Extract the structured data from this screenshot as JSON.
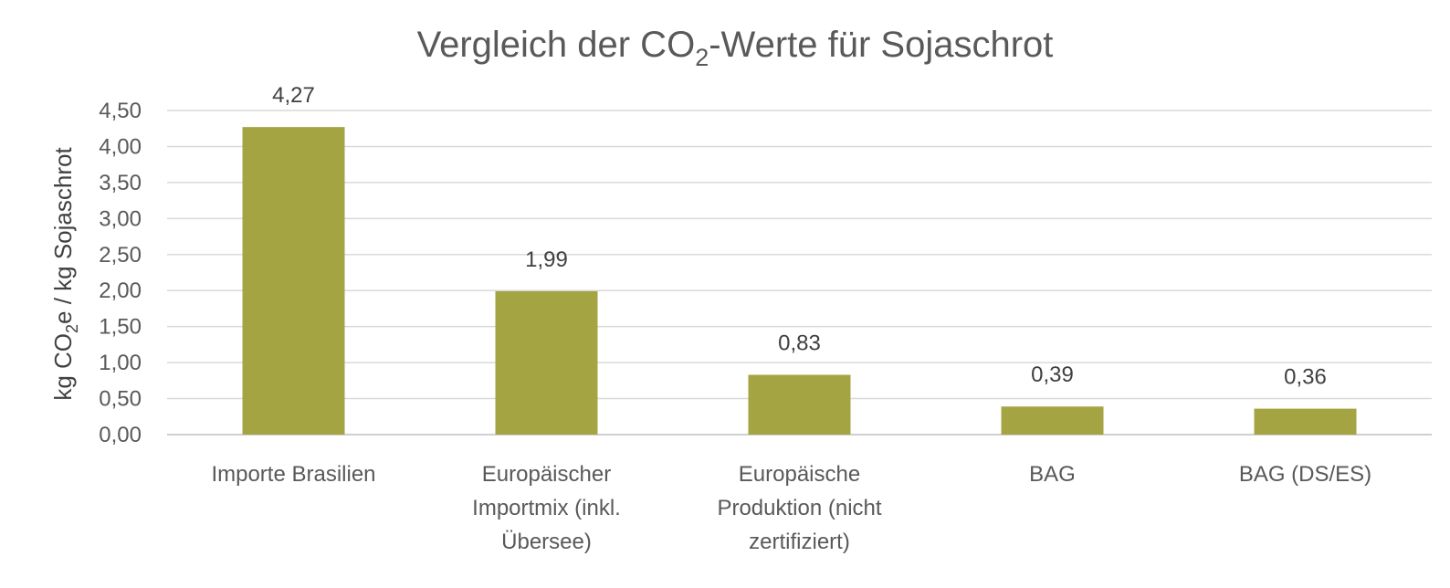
{
  "chart_data": {
    "type": "bar",
    "title": {
      "prefix": "Vergleich der CO",
      "subscript": "2",
      "suffix": "-Werte für Sojaschrot"
    },
    "ylabel": {
      "prefix": "kg CO",
      "subscript": "2",
      "suffix": "e / kg Sojaschrot"
    },
    "xlabel": "",
    "categories": [
      [
        "Importe Brasilien"
      ],
      [
        "Europäischer",
        "Importmix (inkl.",
        "Übersee)"
      ],
      [
        "Europäische",
        "Produktion (nicht",
        "zertifiziert)"
      ],
      [
        "BAG"
      ],
      [
        "BAG (DS/ES)"
      ]
    ],
    "values": [
      4.27,
      1.99,
      0.83,
      0.39,
      0.36
    ],
    "data_labels": [
      "4,27",
      "1,99",
      "0,83",
      "0,39",
      "0,36"
    ],
    "ylim": [
      0,
      4.5
    ],
    "yticks": [
      0,
      0.5,
      1,
      1.5,
      2,
      2.5,
      3,
      3.5,
      4,
      4.5
    ],
    "ytick_labels": [
      "0,00",
      "0,50",
      "1,00",
      "1,50",
      "2,00",
      "2,50",
      "3,00",
      "3,50",
      "4,00",
      "4,50"
    ],
    "bar_color": "#a5a443",
    "grid": true,
    "legend": "none"
  }
}
